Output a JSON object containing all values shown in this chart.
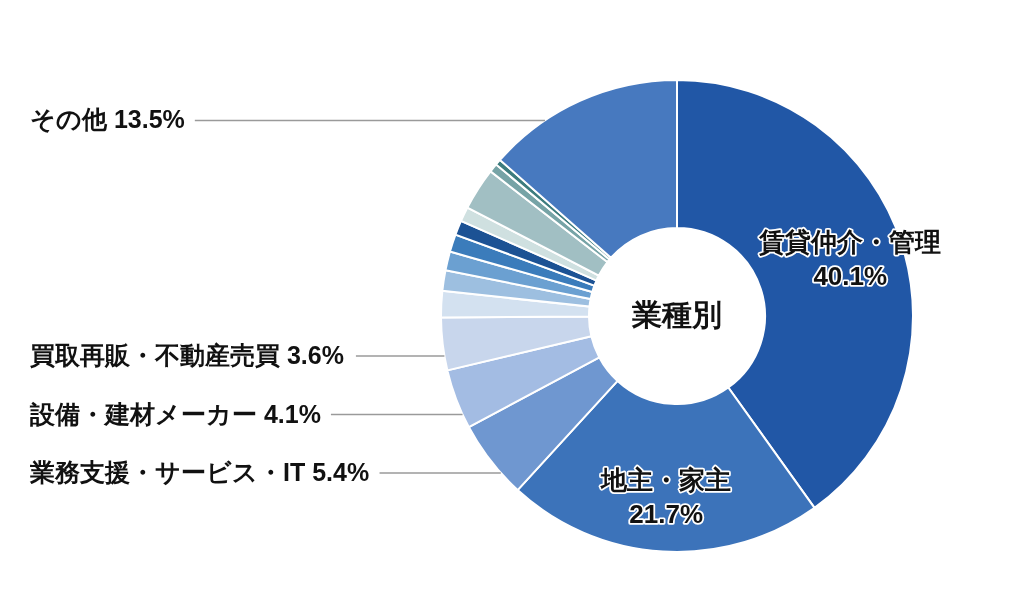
{
  "chart_data": {
    "type": "donut",
    "title": "業種別",
    "categories": [
      "賃貸仲介・管理",
      "地主・家主",
      "業務支援・サービス・IT",
      "設備・建材メーカー",
      "買取再販・不動産売買",
      null,
      null,
      null,
      null,
      null,
      null,
      null,
      null,
      null,
      "その他"
    ],
    "values": [
      40.1,
      21.7,
      5.4,
      4.1,
      3.6,
      1.8,
      1.4,
      1.3,
      1.2,
      1.0,
      1.0,
      2.9,
      0.6,
      0.4,
      13.5
    ],
    "colors": [
      "#2157a6",
      "#3c73ba",
      "#6f97d0",
      "#a3bce3",
      "#c8d6ec",
      "#d3e1f0",
      "#9dbfe0",
      "#6ba0d1",
      "#3b7cbb",
      "#1c5294",
      "#cfe0e0",
      "#a1bfc3",
      "#76a3a6",
      "#3d7c7e",
      "#4779bf"
    ],
    "value_labels": [
      "40.1%",
      "21.7%",
      "5.4%",
      "4.1%",
      "3.6%",
      null,
      null,
      null,
      null,
      null,
      null,
      null,
      null,
      null,
      "13.5%"
    ]
  }
}
